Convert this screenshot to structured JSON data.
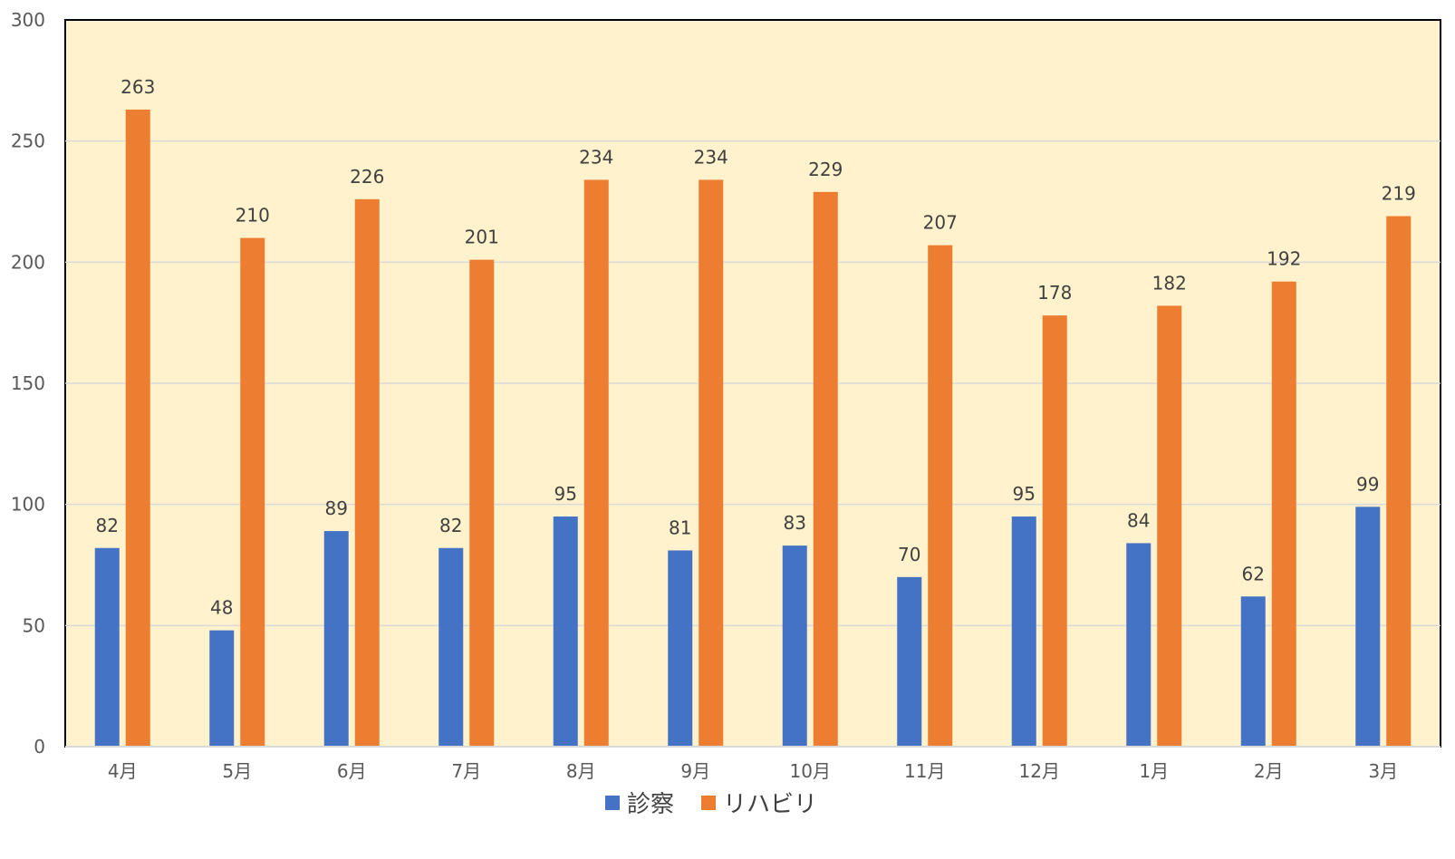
{
  "chart_data": {
    "type": "bar",
    "title": "",
    "xlabel": "",
    "ylabel": "",
    "categories": [
      "4月",
      "5月",
      "6月",
      "7月",
      "8月",
      "9月",
      "10月",
      "11月",
      "12月",
      "1月",
      "2月",
      "3月"
    ],
    "series": [
      {
        "name": "診察",
        "color": "#4472C4",
        "values": [
          82,
          48,
          89,
          82,
          95,
          81,
          83,
          70,
          95,
          84,
          62,
          99
        ]
      },
      {
        "name": "リハビリ",
        "color": "#ED7D31",
        "values": [
          263,
          210,
          226,
          201,
          234,
          234,
          229,
          207,
          178,
          182,
          192,
          219
        ]
      }
    ],
    "ylim": [
      0,
      300
    ],
    "yticks": [
      "0",
      "50",
      "100",
      "150",
      "200",
      "250",
      "300"
    ],
    "grid": true,
    "data_labels": true,
    "legend_position": "bottom",
    "plot_background": "#FFF2CC"
  }
}
